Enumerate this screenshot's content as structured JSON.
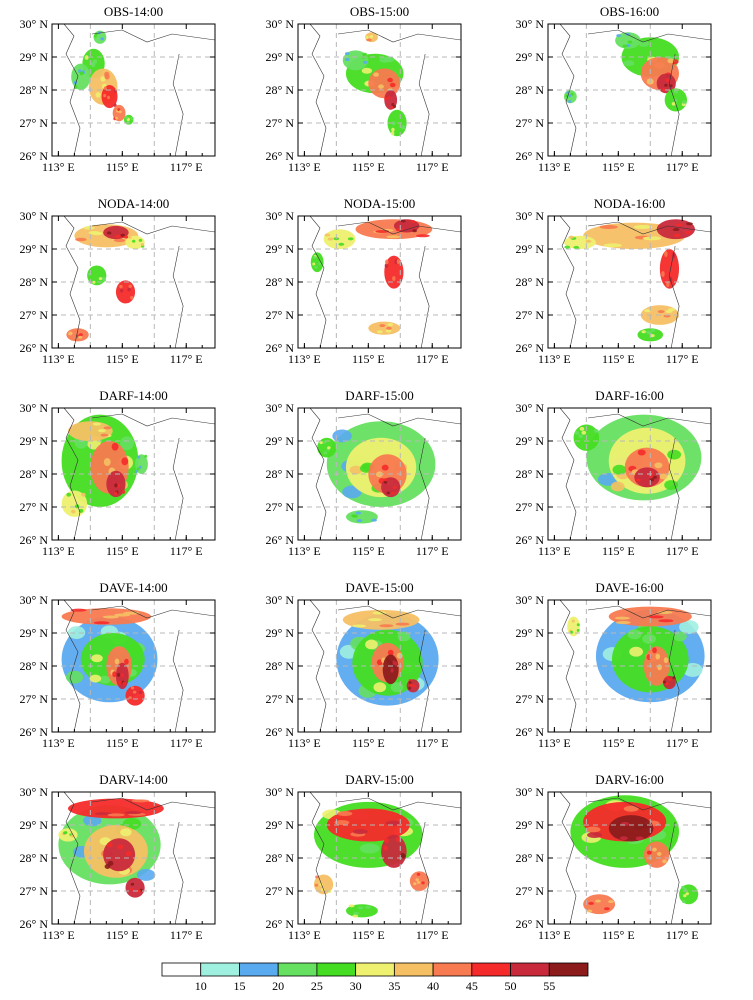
{
  "figure": {
    "lat_ticks": [
      "26° N",
      "27° N",
      "28° N",
      "29° N",
      "30° N"
    ],
    "lon_ticks": [
      "113° E",
      "115° E",
      "117° E"
    ]
  },
  "chart_data": {
    "type": "heatmap",
    "description_rows": [
      "OBS",
      "NODA",
      "DARF",
      "DAVE",
      "DARV"
    ],
    "times": [
      "14:00",
      "15:00",
      "16:00"
    ],
    "xlim": [
      112.8,
      117.9
    ],
    "ylim": [
      26,
      30
    ],
    "x_ticks": [
      113,
      115,
      117
    ],
    "y_ticks": [
      26,
      27,
      28,
      29,
      30
    ],
    "grid_lines_x": [
      114,
      116
    ],
    "grid_lines_y": [
      27,
      28,
      29
    ],
    "panels": [
      {
        "title": "OBS-14:00",
        "cells": [
          [
            114.1,
            28.8,
            0.35,
            0.45,
            25
          ],
          [
            114.4,
            28.1,
            0.45,
            0.55,
            35
          ],
          [
            114.6,
            27.8,
            0.25,
            0.35,
            45
          ],
          [
            113.7,
            28.4,
            0.3,
            0.4,
            20
          ],
          [
            114.9,
            27.3,
            0.2,
            0.25,
            40
          ],
          [
            114.3,
            29.6,
            0.2,
            0.2,
            20
          ],
          [
            115.2,
            27.1,
            0.15,
            0.15,
            25
          ]
        ]
      },
      {
        "title": "OBS-15:00",
        "cells": [
          [
            115.2,
            28.5,
            0.9,
            0.6,
            25
          ],
          [
            115.5,
            28.2,
            0.5,
            0.45,
            40
          ],
          [
            115.7,
            27.7,
            0.2,
            0.3,
            50
          ],
          [
            114.6,
            28.9,
            0.4,
            0.3,
            20
          ],
          [
            115.9,
            27.0,
            0.3,
            0.4,
            25
          ],
          [
            115.1,
            29.6,
            0.2,
            0.15,
            35
          ]
        ]
      },
      {
        "title": "OBS-16:00",
        "cells": [
          [
            116.0,
            29.0,
            0.9,
            0.6,
            25
          ],
          [
            116.3,
            28.5,
            0.6,
            0.5,
            40
          ],
          [
            116.5,
            28.2,
            0.3,
            0.3,
            50
          ],
          [
            115.3,
            29.5,
            0.4,
            0.25,
            20
          ],
          [
            116.8,
            27.7,
            0.35,
            0.35,
            25
          ],
          [
            113.5,
            27.8,
            0.2,
            0.2,
            20
          ]
        ]
      },
      {
        "title": "NODA-14:00",
        "cells": [
          [
            114.5,
            29.4,
            1.0,
            0.35,
            35
          ],
          [
            114.8,
            29.5,
            0.4,
            0.2,
            50
          ],
          [
            115.1,
            27.7,
            0.3,
            0.35,
            45
          ],
          [
            114.2,
            28.2,
            0.3,
            0.3,
            25
          ],
          [
            113.6,
            26.4,
            0.35,
            0.2,
            40
          ],
          [
            115.4,
            29.2,
            0.3,
            0.2,
            30
          ]
        ]
      },
      {
        "title": "NODA-15:00",
        "cells": [
          [
            115.8,
            29.6,
            1.2,
            0.3,
            40
          ],
          [
            116.2,
            29.7,
            0.4,
            0.2,
            50
          ],
          [
            115.8,
            28.3,
            0.3,
            0.5,
            45
          ],
          [
            114.1,
            29.3,
            0.5,
            0.3,
            30
          ],
          [
            115.5,
            26.6,
            0.5,
            0.2,
            35
          ],
          [
            113.4,
            28.6,
            0.2,
            0.3,
            25
          ]
        ]
      },
      {
        "title": "NODA-16:00",
        "cells": [
          [
            115.5,
            29.4,
            1.6,
            0.4,
            35
          ],
          [
            116.8,
            29.6,
            0.6,
            0.3,
            50
          ],
          [
            116.6,
            28.4,
            0.3,
            0.6,
            45
          ],
          [
            116.3,
            27.0,
            0.6,
            0.3,
            35
          ],
          [
            113.8,
            29.2,
            0.5,
            0.2,
            30
          ],
          [
            116.0,
            26.4,
            0.4,
            0.2,
            25
          ]
        ]
      },
      {
        "title": "DARF-14:00",
        "cells": [
          [
            114.3,
            28.4,
            1.2,
            1.4,
            25
          ],
          [
            114.6,
            28.2,
            0.6,
            0.8,
            40
          ],
          [
            114.8,
            27.7,
            0.3,
            0.4,
            50
          ],
          [
            113.5,
            27.1,
            0.4,
            0.4,
            30
          ],
          [
            114.0,
            29.3,
            0.7,
            0.3,
            35
          ],
          [
            115.6,
            28.3,
            0.2,
            0.3,
            20
          ]
        ]
      },
      {
        "title": "DARF-15:00",
        "cells": [
          [
            115.4,
            28.3,
            1.7,
            1.3,
            20
          ],
          [
            115.4,
            28.2,
            1.1,
            0.9,
            30
          ],
          [
            115.6,
            28.0,
            0.6,
            0.6,
            40
          ],
          [
            115.7,
            27.6,
            0.3,
            0.3,
            50
          ],
          [
            113.7,
            28.8,
            0.3,
            0.3,
            25
          ],
          [
            114.8,
            26.7,
            0.5,
            0.2,
            20
          ]
        ]
      },
      {
        "title": "DARF-16:00",
        "cells": [
          [
            115.8,
            28.5,
            1.8,
            1.3,
            20
          ],
          [
            115.9,
            28.4,
            1.2,
            1.0,
            30
          ],
          [
            115.9,
            28.2,
            0.7,
            0.6,
            40
          ],
          [
            115.9,
            27.9,
            0.4,
            0.3,
            50
          ],
          [
            114.0,
            29.1,
            0.4,
            0.4,
            25
          ]
        ]
      },
      {
        "title": "DAVE-14:00",
        "cells": [
          [
            114.6,
            28.2,
            1.5,
            1.3,
            15
          ],
          [
            114.7,
            28.2,
            1.0,
            0.8,
            25
          ],
          [
            114.9,
            28.0,
            0.4,
            0.6,
            40
          ],
          [
            115.0,
            27.7,
            0.2,
            0.4,
            50
          ],
          [
            114.5,
            29.5,
            1.4,
            0.25,
            40
          ],
          [
            115.4,
            27.1,
            0.3,
            0.3,
            45
          ]
        ]
      },
      {
        "title": "DAVE-15:00",
        "cells": [
          [
            115.6,
            28.2,
            1.6,
            1.4,
            15
          ],
          [
            115.6,
            28.1,
            1.1,
            1.0,
            25
          ],
          [
            115.6,
            28.1,
            0.5,
            0.6,
            40
          ],
          [
            115.7,
            27.9,
            0.25,
            0.45,
            55
          ],
          [
            115.4,
            29.4,
            1.2,
            0.3,
            35
          ],
          [
            116.4,
            27.4,
            0.2,
            0.2,
            50
          ]
        ]
      },
      {
        "title": "DAVE-16:00",
        "cells": [
          [
            116.0,
            28.3,
            1.7,
            1.4,
            15
          ],
          [
            116.0,
            28.2,
            1.2,
            1.0,
            25
          ],
          [
            116.2,
            28.0,
            0.4,
            0.6,
            40
          ],
          [
            116.6,
            27.5,
            0.2,
            0.2,
            50
          ],
          [
            116.0,
            29.5,
            1.3,
            0.3,
            40
          ],
          [
            113.6,
            29.2,
            0.2,
            0.3,
            30
          ]
        ]
      },
      {
        "title": "DARV-14:00",
        "cells": [
          [
            114.6,
            28.4,
            1.6,
            1.2,
            20
          ],
          [
            114.8,
            28.2,
            1.0,
            0.8,
            35
          ],
          [
            114.9,
            28.1,
            0.5,
            0.5,
            50
          ],
          [
            114.8,
            29.5,
            1.5,
            0.3,
            45
          ],
          [
            115.4,
            27.1,
            0.3,
            0.3,
            50
          ],
          [
            113.3,
            28.7,
            0.3,
            0.2,
            30
          ]
        ]
      },
      {
        "title": "DARV-15:00",
        "cells": [
          [
            115.0,
            28.7,
            1.7,
            1.0,
            25
          ],
          [
            115.0,
            29.0,
            1.3,
            0.5,
            45
          ],
          [
            115.8,
            28.2,
            0.4,
            0.5,
            50
          ],
          [
            116.6,
            27.3,
            0.3,
            0.3,
            40
          ],
          [
            113.6,
            27.2,
            0.3,
            0.3,
            35
          ],
          [
            114.8,
            26.4,
            0.5,
            0.2,
            25
          ]
        ]
      },
      {
        "title": "DARV-16:00",
        "cells": [
          [
            115.2,
            28.8,
            1.7,
            1.1,
            25
          ],
          [
            115.2,
            29.1,
            1.3,
            0.6,
            45
          ],
          [
            115.4,
            28.9,
            0.7,
            0.4,
            55
          ],
          [
            116.2,
            28.1,
            0.4,
            0.4,
            40
          ],
          [
            114.4,
            26.6,
            0.5,
            0.3,
            40
          ],
          [
            117.2,
            26.9,
            0.3,
            0.3,
            25
          ]
        ]
      }
    ]
  },
  "colorbar": {
    "labels": [
      "10",
      "15",
      "20",
      "25",
      "30",
      "35",
      "40",
      "45",
      "50",
      "55"
    ],
    "colors": [
      "#ffffff",
      "#a0f0e0",
      "#5aaaf0",
      "#66e060",
      "#44dd22",
      "#eef070",
      "#f5c064",
      "#f87a50",
      "#f52a2a",
      "#c82a3c",
      "#8c1c1c"
    ]
  }
}
